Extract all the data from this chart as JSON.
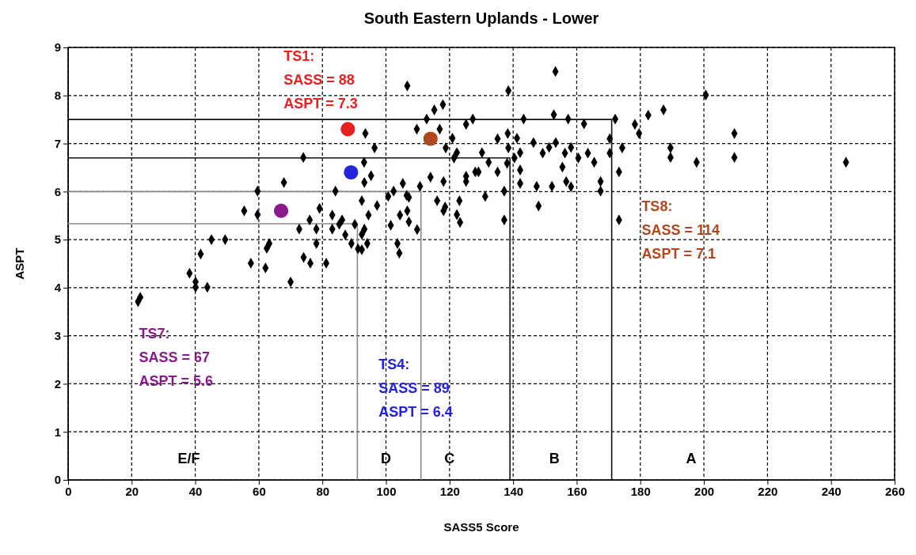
{
  "chart_data": {
    "type": "scatter",
    "title": "South Eastern Uplands - Lower",
    "xlabel": "SASS5 Score",
    "ylabel": "ASPT",
    "xlim": [
      0,
      260
    ],
    "xticks": [
      0,
      20,
      40,
      60,
      80,
      100,
      120,
      140,
      160,
      180,
      200,
      220,
      240,
      260
    ],
    "ylim": [
      0,
      9
    ],
    "yticks": [
      0,
      1,
      2,
      3,
      4,
      5,
      6,
      7,
      8,
      9
    ],
    "grid": true,
    "series": [
      {
        "type": "scatter",
        "marker": "diamond",
        "color": "#000000",
        "x": [
          67.9,
          59.6,
          55.4,
          59.6,
          72.7,
          45.1,
          49.4,
          41.7,
          63.3,
          62.5,
          57.5,
          62.1,
          38.2,
          40.1,
          40.1,
          43.8,
          70.0,
          22.7,
          22.0,
          153.3,
          106.7,
          138.5,
          117.9,
          115.2,
          112.8,
          127.3,
          125.2,
          116.9,
          109.7,
          143.3,
          152.8,
          157.3,
          162.3,
          172.1,
          93.5,
          96.4,
          120.9,
          118.8,
          135.1,
          138.3,
          141.2,
          138.5,
          146.4,
          151.3,
          153.4,
          158.2,
          149.3,
          156.3,
          160.5,
          163.5,
          165.5,
          170.4,
          170.4,
          122.3,
          121.4,
          130.2,
          132.3,
          140.4,
          142.2,
          138.1,
          142.2,
          142.2,
          135.1,
          128.1,
          129.1,
          125.2,
          125.2,
          114.0,
          118.1,
          105.3,
          110.7,
          93.1,
          95.3,
          93.2,
          84.1,
          102.4,
          100.7,
          106.5,
          107.2,
          147.4,
          152.2,
          156.7,
          158.2,
          155.5,
          167.5,
          167.5,
          137.2,
          148.0,
          131.2,
          137.2,
          116.1,
          123.1,
          118.6,
          118.1,
          122.3,
          123.3,
          92.4,
          97.2,
          79.1,
          83.1,
          76.0,
          86.2,
          85.3,
          78.1,
          83.1,
          90.2,
          94.5,
          104.4,
          106.7,
          101.5,
          107.2,
          109.8,
          93.2,
          87.2,
          89.1,
          92.4,
          91.2,
          92.4,
          94.1,
          78.1,
          103.6,
          104.2,
          74.1,
          76.2,
          81.2,
          74.0,
          200.6,
          187.3,
          182.5,
          178.3,
          179.6,
          174.3,
          173.3,
          173.3,
          189.5,
          189.5,
          197.7,
          209.6,
          209.6,
          244.7
        ],
        "values": [
          6.19,
          6.01,
          5.6,
          5.52,
          5.22,
          5.0,
          5.0,
          4.7,
          4.92,
          4.82,
          4.51,
          4.41,
          4.3,
          4.12,
          4.01,
          4.01,
          4.12,
          3.8,
          3.71,
          8.5,
          8.2,
          8.1,
          7.81,
          7.7,
          7.51,
          7.51,
          7.4,
          7.3,
          7.3,
          7.51,
          7.6,
          7.51,
          7.41,
          7.51,
          7.21,
          6.91,
          7.11,
          6.91,
          7.1,
          7.21,
          7.11,
          6.91,
          7.02,
          6.92,
          7.02,
          6.92,
          6.8,
          6.8,
          6.7,
          6.8,
          6.61,
          7.1,
          6.8,
          6.81,
          6.7,
          6.81,
          6.61,
          6.7,
          6.81,
          6.59,
          6.45,
          6.17,
          6.41,
          6.41,
          6.41,
          6.32,
          6.21,
          6.3,
          6.21,
          6.17,
          6.11,
          6.61,
          6.33,
          6.19,
          6.01,
          6.01,
          5.9,
          5.92,
          5.88,
          6.11,
          6.11,
          6.21,
          6.1,
          6.51,
          6.21,
          6.01,
          6.01,
          5.7,
          5.9,
          5.41,
          5.81,
          5.81,
          5.68,
          5.6,
          5.52,
          5.36,
          5.81,
          5.71,
          5.65,
          5.51,
          5.41,
          5.41,
          5.32,
          5.22,
          5.22,
          5.32,
          5.51,
          5.51,
          5.6,
          5.3,
          5.37,
          5.21,
          5.22,
          5.1,
          4.92,
          5.11,
          4.81,
          4.79,
          4.92,
          4.92,
          4.92,
          4.72,
          4.63,
          4.51,
          4.51,
          6.71,
          8.01,
          7.7,
          7.59,
          7.4,
          7.21,
          6.91,
          6.41,
          5.41,
          6.91,
          6.71,
          6.61,
          7.21,
          6.71,
          6.61
        ]
      },
      {
        "type": "scatter",
        "marker": "circle",
        "color": "#e8201f",
        "x": [
          88
        ],
        "values": [
          7.3
        ]
      },
      {
        "type": "scatter",
        "marker": "circle",
        "color": "#2323e0",
        "x": [
          89
        ],
        "values": [
          6.4
        ]
      },
      {
        "type": "scatter",
        "marker": "circle",
        "color": "#8b1a8b",
        "x": [
          67
        ],
        "values": [
          5.6
        ]
      },
      {
        "type": "scatter",
        "marker": "circle",
        "color": "#b0471e",
        "x": [
          114
        ],
        "values": [
          7.1
        ]
      },
      {
        "type": "line",
        "marker": "none",
        "color": "#111111",
        "x": [
          0,
          171,
          171
        ],
        "values": [
          7.5,
          7.5,
          0
        ]
      },
      {
        "type": "line",
        "marker": "none",
        "color": "#111111",
        "x": [
          0,
          139,
          139
        ],
        "values": [
          6.7,
          6.7,
          0
        ]
      },
      {
        "type": "line",
        "marker": "none",
        "color": "#888888",
        "x": [
          0,
          111,
          111
        ],
        "values": [
          6.0,
          6.0,
          0
        ]
      },
      {
        "type": "line",
        "marker": "none",
        "color": "#888888",
        "x": [
          0,
          91,
          91
        ],
        "values": [
          5.33,
          5.33,
          0
        ]
      }
    ],
    "annotations": [
      "TS1:\nSASS = 88\nASPT = 7.3",
      "TS4:\nSASS = 89\nASPT = 6.4",
      "TS7:\nSASS = 67\nASPT = 5.6",
      "TS8:\nSASS = 114\nASPT = 7.1",
      "E/F",
      "D",
      "C",
      "B",
      "A"
    ]
  }
}
